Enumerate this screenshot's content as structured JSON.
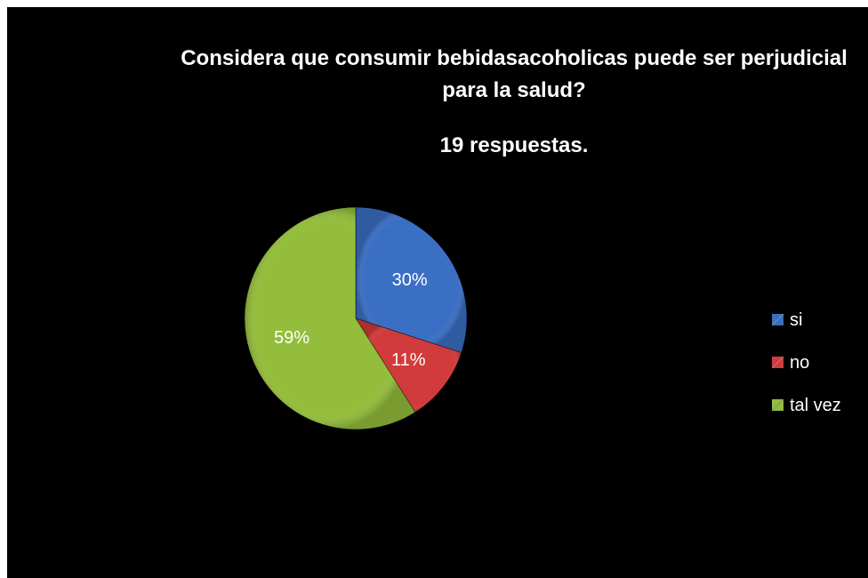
{
  "chart_data": {
    "type": "pie",
    "title": "Considera que consumir bebidasacoholicas puede ser perjudicial para la salud?",
    "subtitle": "19 respuestas.",
    "categories": [
      "si",
      "no",
      "tal vez"
    ],
    "values": [
      30,
      11,
      59
    ],
    "labels": [
      "30%",
      "11%",
      "59%"
    ],
    "colors": [
      "#3a6fc4",
      "#d23b3b",
      "#93bd3a"
    ],
    "legend_position": "right"
  }
}
